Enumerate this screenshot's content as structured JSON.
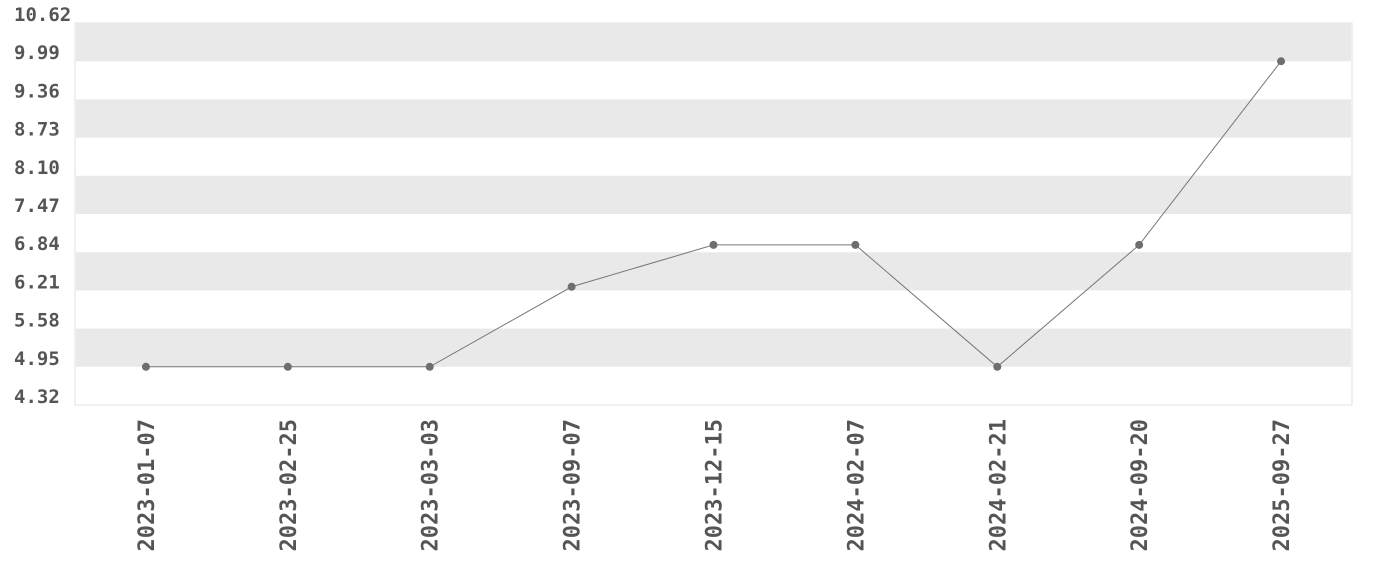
{
  "chart_data": {
    "type": "line",
    "title": "",
    "xlabel": "",
    "ylabel": "",
    "categories": [
      "2023-01-07",
      "2023-02-25",
      "2023-03-03",
      "2023-09-07",
      "2023-12-15",
      "2024-02-07",
      "2024-02-21",
      "2024-09-20",
      "2025-09-27"
    ],
    "values": [
      4.95,
      4.95,
      4.95,
      6.27,
      6.96,
      6.96,
      4.95,
      6.96,
      9.99
    ],
    "ylim": [
      4.32,
      10.62
    ],
    "yticks": [
      "4.32",
      "4.95",
      "5.58",
      "6.21",
      "6.84",
      "7.47",
      "8.10",
      "8.73",
      "9.36",
      "9.99",
      "10.62"
    ],
    "grid": "alternating horizontal bands",
    "colors": {
      "line": "#777777",
      "point": "#6e6e6e",
      "band": "#e9e9e9",
      "text": "#555555"
    }
  }
}
